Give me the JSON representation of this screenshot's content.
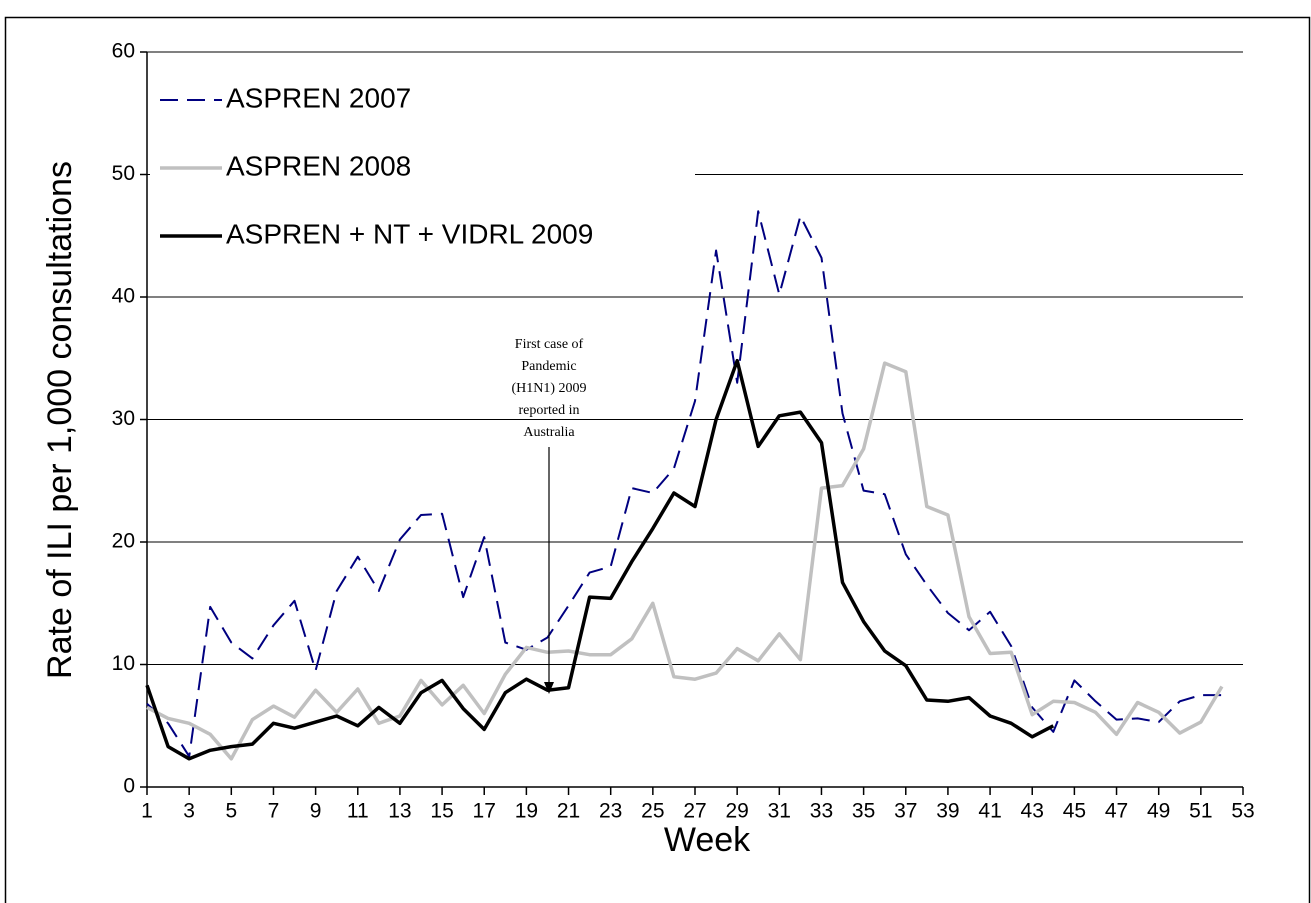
{
  "chart_data": {
    "type": "line",
    "xlabel": "Week",
    "ylabel": "Rate of ILI per 1,000 consultations",
    "annotation": "First case of Pandemic (H1N1) 2009 reported in Australia",
    "x": [
      1,
      2,
      3,
      4,
      5,
      6,
      7,
      8,
      9,
      10,
      11,
      12,
      13,
      14,
      15,
      16,
      17,
      18,
      19,
      20,
      21,
      22,
      23,
      24,
      25,
      26,
      27,
      28,
      29,
      30,
      31,
      32,
      33,
      34,
      35,
      36,
      37,
      38,
      39,
      40,
      41,
      42,
      43,
      44,
      45,
      46,
      47,
      48,
      49,
      50,
      51,
      52
    ],
    "series": [
      {
        "name": "ASPREN 2007",
        "color": "#000080",
        "dashed": true,
        "values": [
          6.8,
          5.2,
          2.5,
          14.7,
          11.8,
          10.5,
          13.2,
          15.2,
          9.5,
          16,
          18.8,
          16,
          20.2,
          22.2,
          22.3,
          15.5,
          20.4,
          11.8,
          11.2,
          12.2,
          14.8,
          17.5,
          18,
          24.4,
          24,
          26,
          31.5,
          43.8,
          33,
          47,
          40.2,
          46.6,
          43.2,
          30.5,
          24.2,
          23.9,
          19,
          16.5,
          14.2,
          12.8,
          14.3,
          11.5,
          6.5,
          4.5,
          8.7,
          7,
          5.5,
          5.6,
          5.3,
          7,
          7.5,
          7.5
        ]
      },
      {
        "name": "ASPREN 2008",
        "color": "#c0c0c0",
        "dashed": false,
        "values": [
          6.5,
          5.6,
          5.2,
          4.3,
          2.3,
          5.5,
          6.6,
          5.7,
          7.9,
          6.1,
          8,
          5.2,
          5.8,
          8.7,
          6.7,
          8.3,
          6,
          9.2,
          11.4,
          11,
          11.1,
          10.8,
          10.8,
          12.1,
          15,
          9,
          8.8,
          9.3,
          11.3,
          10.3,
          12.5,
          10.4,
          24.4,
          24.6,
          27.6,
          34.6,
          33.9,
          22.9,
          22.2,
          13.9,
          10.9,
          11,
          5.9,
          7,
          6.9,
          6.1,
          4.3,
          6.9,
          6.1,
          4.4,
          5.3,
          8.2
        ]
      },
      {
        "name": "ASPREN + NT + VIDRL 2009",
        "color": "#000000",
        "dashed": false,
        "values": [
          8.3,
          3.3,
          2.3,
          3,
          3.3,
          3.5,
          5.2,
          4.8,
          5.3,
          5.8,
          5,
          6.5,
          5.2,
          7.7,
          8.7,
          6.4,
          4.7,
          7.7,
          8.8,
          7.9,
          8.1,
          15.5,
          15.4,
          18.4,
          21.1,
          24,
          22.9,
          30,
          34.8,
          27.8,
          30.3,
          30.6,
          28.1,
          16.7,
          13.5,
          11.1,
          9.9,
          7.1,
          7,
          7.3,
          5.8,
          5.2,
          4.1,
          5,
          null,
          null,
          null,
          null,
          null,
          null,
          null,
          null
        ]
      }
    ],
    "xlim": [
      1,
      53
    ],
    "xticks": [
      1,
      3,
      5,
      7,
      9,
      11,
      13,
      15,
      17,
      19,
      21,
      23,
      25,
      27,
      29,
      31,
      33,
      35,
      37,
      39,
      41,
      43,
      45,
      47,
      49,
      51,
      53
    ],
    "ylim": [
      0,
      60
    ],
    "yticks": [
      0,
      10,
      20,
      30,
      40,
      50,
      60
    ],
    "grid": true,
    "legend": "upper left"
  }
}
